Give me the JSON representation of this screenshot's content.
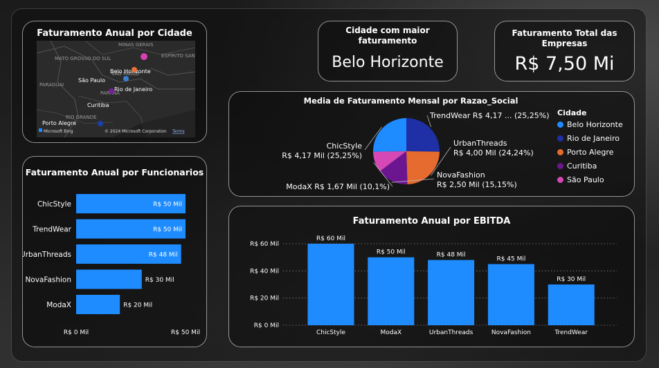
{
  "map_card": {
    "title": "Faturamento Anual por Cidade",
    "region_labels": [
      "MATO GROSSO DO SUL",
      "MINAS GERAIS",
      "ESPÍRITO SANTO",
      "SÃO PAULO",
      "PARAGUAI",
      "PARANÁ",
      "RIO GRANDE"
    ],
    "cities": [
      {
        "name": "Belo Horizonte",
        "color": "#D640B0"
      },
      {
        "name": "Rio de Janeiro",
        "color": "#E8733A"
      },
      {
        "name": "São Paulo",
        "color": "#3A7FD0"
      },
      {
        "name": "Curitiba",
        "color": "#7A1E9E"
      },
      {
        "name": "Porto Alegre",
        "color": "#1E3FA8"
      }
    ],
    "bing_label": "Microsoft Bing",
    "copyright": "© 2024 Microsoft Corporation",
    "terms": "Terms"
  },
  "kpi_city": {
    "title": "Cidade com maior faturamento",
    "value": "Belo Horizonte"
  },
  "kpi_total": {
    "title": "Faturamento Total das Empresas",
    "value": "R$ 7,50 Mi"
  },
  "pie_card": {
    "title": "Media de Faturamento Mensal por Razao_Social",
    "legend_title": "Cidade",
    "legend": [
      {
        "name": "Belo Horizonte",
        "color": "#1E8CFF"
      },
      {
        "name": "Rio de Janeiro",
        "color": "#1F2FA6"
      },
      {
        "name": "Porto Alegre",
        "color": "#E56B2E"
      },
      {
        "name": "Curitiba",
        "color": "#6B1591"
      },
      {
        "name": "São Paulo",
        "color": "#D548B5"
      }
    ]
  },
  "bar_card": {
    "title": "Faturamento Anual por Funcionarios",
    "x_min_label": "R$ 0 Mil",
    "x_max_label": "R$ 50 Mil"
  },
  "column_card": {
    "title": "Faturamento Anual por EBITDA"
  },
  "chart_data": [
    {
      "type": "pie",
      "title": "Media de Faturamento Mensal por Razao_Social",
      "slices": [
        {
          "name": "TrendWear",
          "value": 4.17,
          "percent": "25,25%",
          "color": "#1F2FA6",
          "label": "TrendWear R$ 4,17 ... (25,25%)",
          "label_name": "",
          "label_value": ""
        },
        {
          "name": "UrbanThreads",
          "value": 4.0,
          "percent": "24,24%",
          "color": "#E56B2E",
          "label": "",
          "label_name": "UrbanThreads",
          "label_value": "R$ 4,00 Mil (24,24%)"
        },
        {
          "name": "NovaFashion",
          "value": 2.5,
          "percent": "15,15%",
          "color": "#6B1591",
          "label": "",
          "label_name": "NovaFashion",
          "label_value": "R$ 2,50 Mil (15,15%)"
        },
        {
          "name": "ModaX",
          "value": 1.67,
          "percent": "10,1%",
          "color": "#D548B5",
          "label": "ModaX R$ 1,67 Mil (10,1%)",
          "label_name": "",
          "label_value": ""
        },
        {
          "name": "ChicStyle",
          "value": 4.17,
          "percent": "25,25%",
          "color": "#1E8CFF",
          "label": "",
          "label_name": "ChicStyle",
          "label_value": "R$ 4,17 Mil (25,25%)"
        }
      ]
    },
    {
      "type": "bar",
      "orientation": "horizontal",
      "title": "Faturamento Anual por Funcionarios",
      "categories": [
        "ChicStyle",
        "TrendWear",
        "UrbanThreads",
        "NovaFashion",
        "ModaX"
      ],
      "values": [
        50,
        50,
        48,
        30,
        20
      ],
      "value_labels": [
        "R$ 50 Mil",
        "R$ 50 Mil",
        "R$ 48 Mil",
        "R$ 30 Mil",
        "R$ 20 Mil"
      ],
      "xlim": [
        0,
        50
      ],
      "color": "#1E8CFF"
    },
    {
      "type": "bar",
      "orientation": "vertical",
      "title": "Faturamento Anual por EBITDA",
      "categories": [
        "ChicStyle",
        "ModaX",
        "UrbanThreads",
        "NovaFashion",
        "TrendWear"
      ],
      "values": [
        60,
        50,
        48,
        45,
        30
      ],
      "value_labels": [
        "R$ 60 Mil",
        "R$ 50 Mil",
        "R$ 48 Mil",
        "R$ 45 Mil",
        "R$ 30 Mil"
      ],
      "ylim": [
        0,
        60
      ],
      "yticks": [
        0,
        20,
        40,
        60
      ],
      "ytick_labels": [
        "R$ 0 Mil",
        "R$ 20 Mil",
        "R$ 40 Mil",
        "R$ 60 Mil"
      ],
      "grid": true,
      "color": "#1E8CFF"
    }
  ]
}
